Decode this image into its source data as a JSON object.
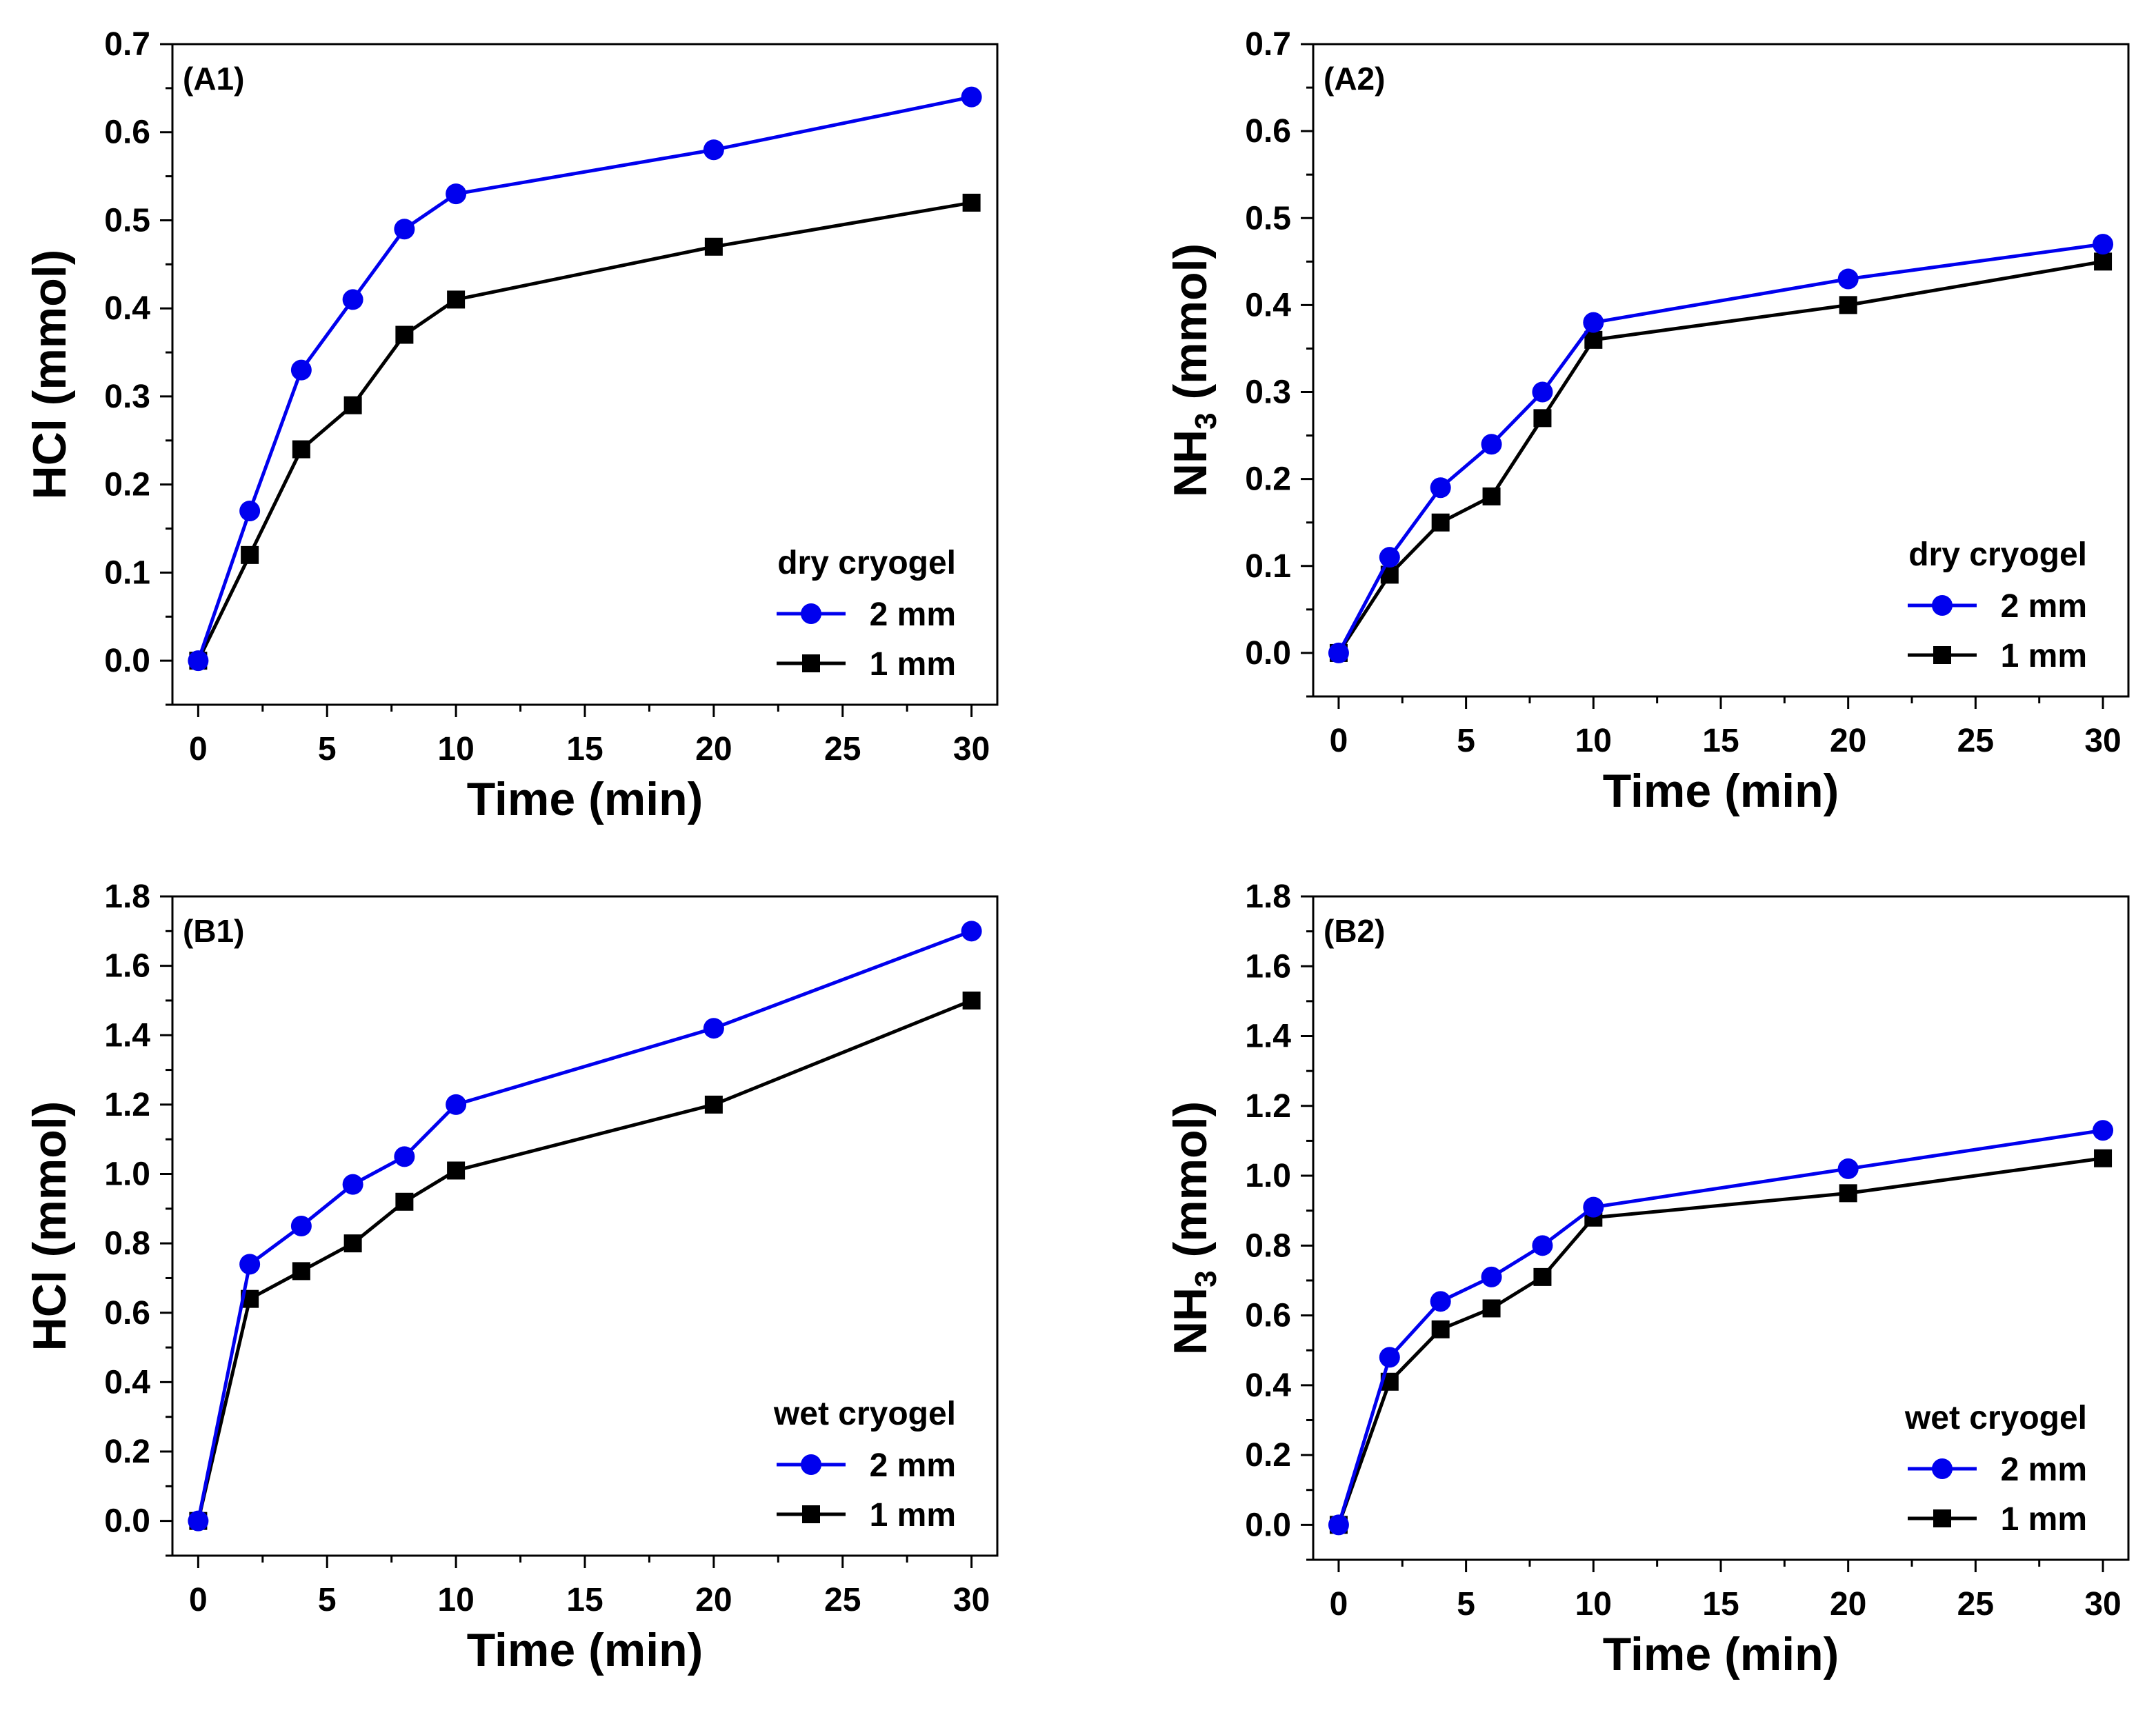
{
  "colors": {
    "blue": "#0000ee",
    "black": "#000000"
  },
  "chart_data": [
    {
      "id": "A1",
      "type": "line",
      "tag": "(A1)",
      "xlabel": "Time (min)",
      "ylabel_main": "HCl",
      "ylabel_sub": "",
      "ylabel_unit": "(mmol)",
      "x": [
        0,
        2,
        4,
        6,
        8,
        10,
        20,
        30
      ],
      "xlim": [
        -1,
        31
      ],
      "ylim": [
        -0.05,
        0.7
      ],
      "xticks": [
        0,
        5,
        10,
        15,
        20,
        25,
        30
      ],
      "yticks": [
        0.0,
        0.1,
        0.2,
        0.3,
        0.4,
        0.5,
        0.6,
        0.7
      ],
      "ytick_labels": [
        "0.0",
        "0.1",
        "0.2",
        "0.3",
        "0.4",
        "0.5",
        "0.6",
        "0.7"
      ],
      "legend_title": "dry cryogel",
      "series": [
        {
          "name": "2 mm",
          "marker": "circle",
          "color": "#0000ee",
          "values": [
            0,
            0.17,
            0.33,
            0.41,
            0.49,
            0.53,
            0.58,
            0.64
          ]
        },
        {
          "name": "1 mm",
          "marker": "square",
          "color": "#000000",
          "values": [
            0,
            0.12,
            0.24,
            0.29,
            0.37,
            0.41,
            0.47,
            0.52
          ]
        }
      ]
    },
    {
      "id": "A2",
      "type": "line",
      "tag": "(A2)",
      "xlabel": "Time (min)",
      "ylabel_main": "NH",
      "ylabel_sub": "3",
      "ylabel_unit": "(mmol)",
      "x": [
        0,
        2,
        4,
        6,
        8,
        10,
        20,
        30
      ],
      "xlim": [
        -1,
        31
      ],
      "ylim": [
        -0.05,
        0.7
      ],
      "xticks": [
        0,
        5,
        10,
        15,
        20,
        25,
        30
      ],
      "yticks": [
        0.0,
        0.1,
        0.2,
        0.3,
        0.4,
        0.5,
        0.6,
        0.7
      ],
      "ytick_labels": [
        "0.0",
        "0.1",
        "0.2",
        "0.3",
        "0.4",
        "0.5",
        "0.6",
        "0.7"
      ],
      "legend_title": "dry cryogel",
      "series": [
        {
          "name": "2 mm",
          "marker": "circle",
          "color": "#0000ee",
          "values": [
            0,
            0.11,
            0.19,
            0.24,
            0.3,
            0.38,
            0.43,
            0.47
          ]
        },
        {
          "name": "1 mm",
          "marker": "square",
          "color": "#000000",
          "values": [
            0,
            0.09,
            0.15,
            0.18,
            0.27,
            0.36,
            0.4,
            0.45
          ]
        }
      ]
    },
    {
      "id": "B1",
      "type": "line",
      "tag": "(B1)",
      "xlabel": "Time (min)",
      "ylabel_main": "HCl",
      "ylabel_sub": "",
      "ylabel_unit": "(mmol)",
      "x": [
        0,
        2,
        4,
        6,
        8,
        10,
        20,
        30
      ],
      "xlim": [
        -1,
        31
      ],
      "ylim": [
        -0.1,
        1.8
      ],
      "xticks": [
        0,
        5,
        10,
        15,
        20,
        25,
        30
      ],
      "yticks": [
        0.0,
        0.2,
        0.4,
        0.6,
        0.8,
        1.0,
        1.2,
        1.4,
        1.6,
        1.8
      ],
      "ytick_labels": [
        "0.0",
        "0.2",
        "0.4",
        "0.6",
        "0.8",
        "1.0",
        "1.2",
        "1.4",
        "1.6",
        "1.8"
      ],
      "legend_title": "wet cryogel",
      "series": [
        {
          "name": "2 mm",
          "marker": "circle",
          "color": "#0000ee",
          "values": [
            0,
            0.74,
            0.85,
            0.97,
            1.05,
            1.2,
            1.42,
            1.7
          ]
        },
        {
          "name": "1 mm",
          "marker": "square",
          "color": "#000000",
          "values": [
            0,
            0.64,
            0.72,
            0.8,
            0.92,
            1.01,
            1.2,
            1.5
          ]
        }
      ]
    },
    {
      "id": "B2",
      "type": "line",
      "tag": "(B2)",
      "xlabel": "Time (min)",
      "ylabel_main": "NH",
      "ylabel_sub": "3",
      "ylabel_unit": "(mmol)",
      "x": [
        0,
        2,
        4,
        6,
        8,
        10,
        20,
        30
      ],
      "xlim": [
        -1,
        31
      ],
      "ylim": [
        -0.1,
        1.8
      ],
      "xticks": [
        0,
        5,
        10,
        15,
        20,
        25,
        30
      ],
      "yticks": [
        0.0,
        0.2,
        0.4,
        0.6,
        0.8,
        1.0,
        1.2,
        1.4,
        1.6,
        1.8
      ],
      "ytick_labels": [
        "0.0",
        "0.2",
        "0.4",
        "0.6",
        "0.8",
        "1.0",
        "1.2",
        "1.4",
        "1.6",
        "1.8"
      ],
      "legend_title": "wet cryogel",
      "series": [
        {
          "name": "2 mm",
          "marker": "circle",
          "color": "#0000ee",
          "values": [
            0,
            0.48,
            0.64,
            0.71,
            0.8,
            0.91,
            1.02,
            1.13
          ]
        },
        {
          "name": "1 mm",
          "marker": "square",
          "color": "#000000",
          "values": [
            0,
            0.41,
            0.56,
            0.62,
            0.71,
            0.88,
            0.95,
            1.05
          ]
        }
      ]
    }
  ]
}
